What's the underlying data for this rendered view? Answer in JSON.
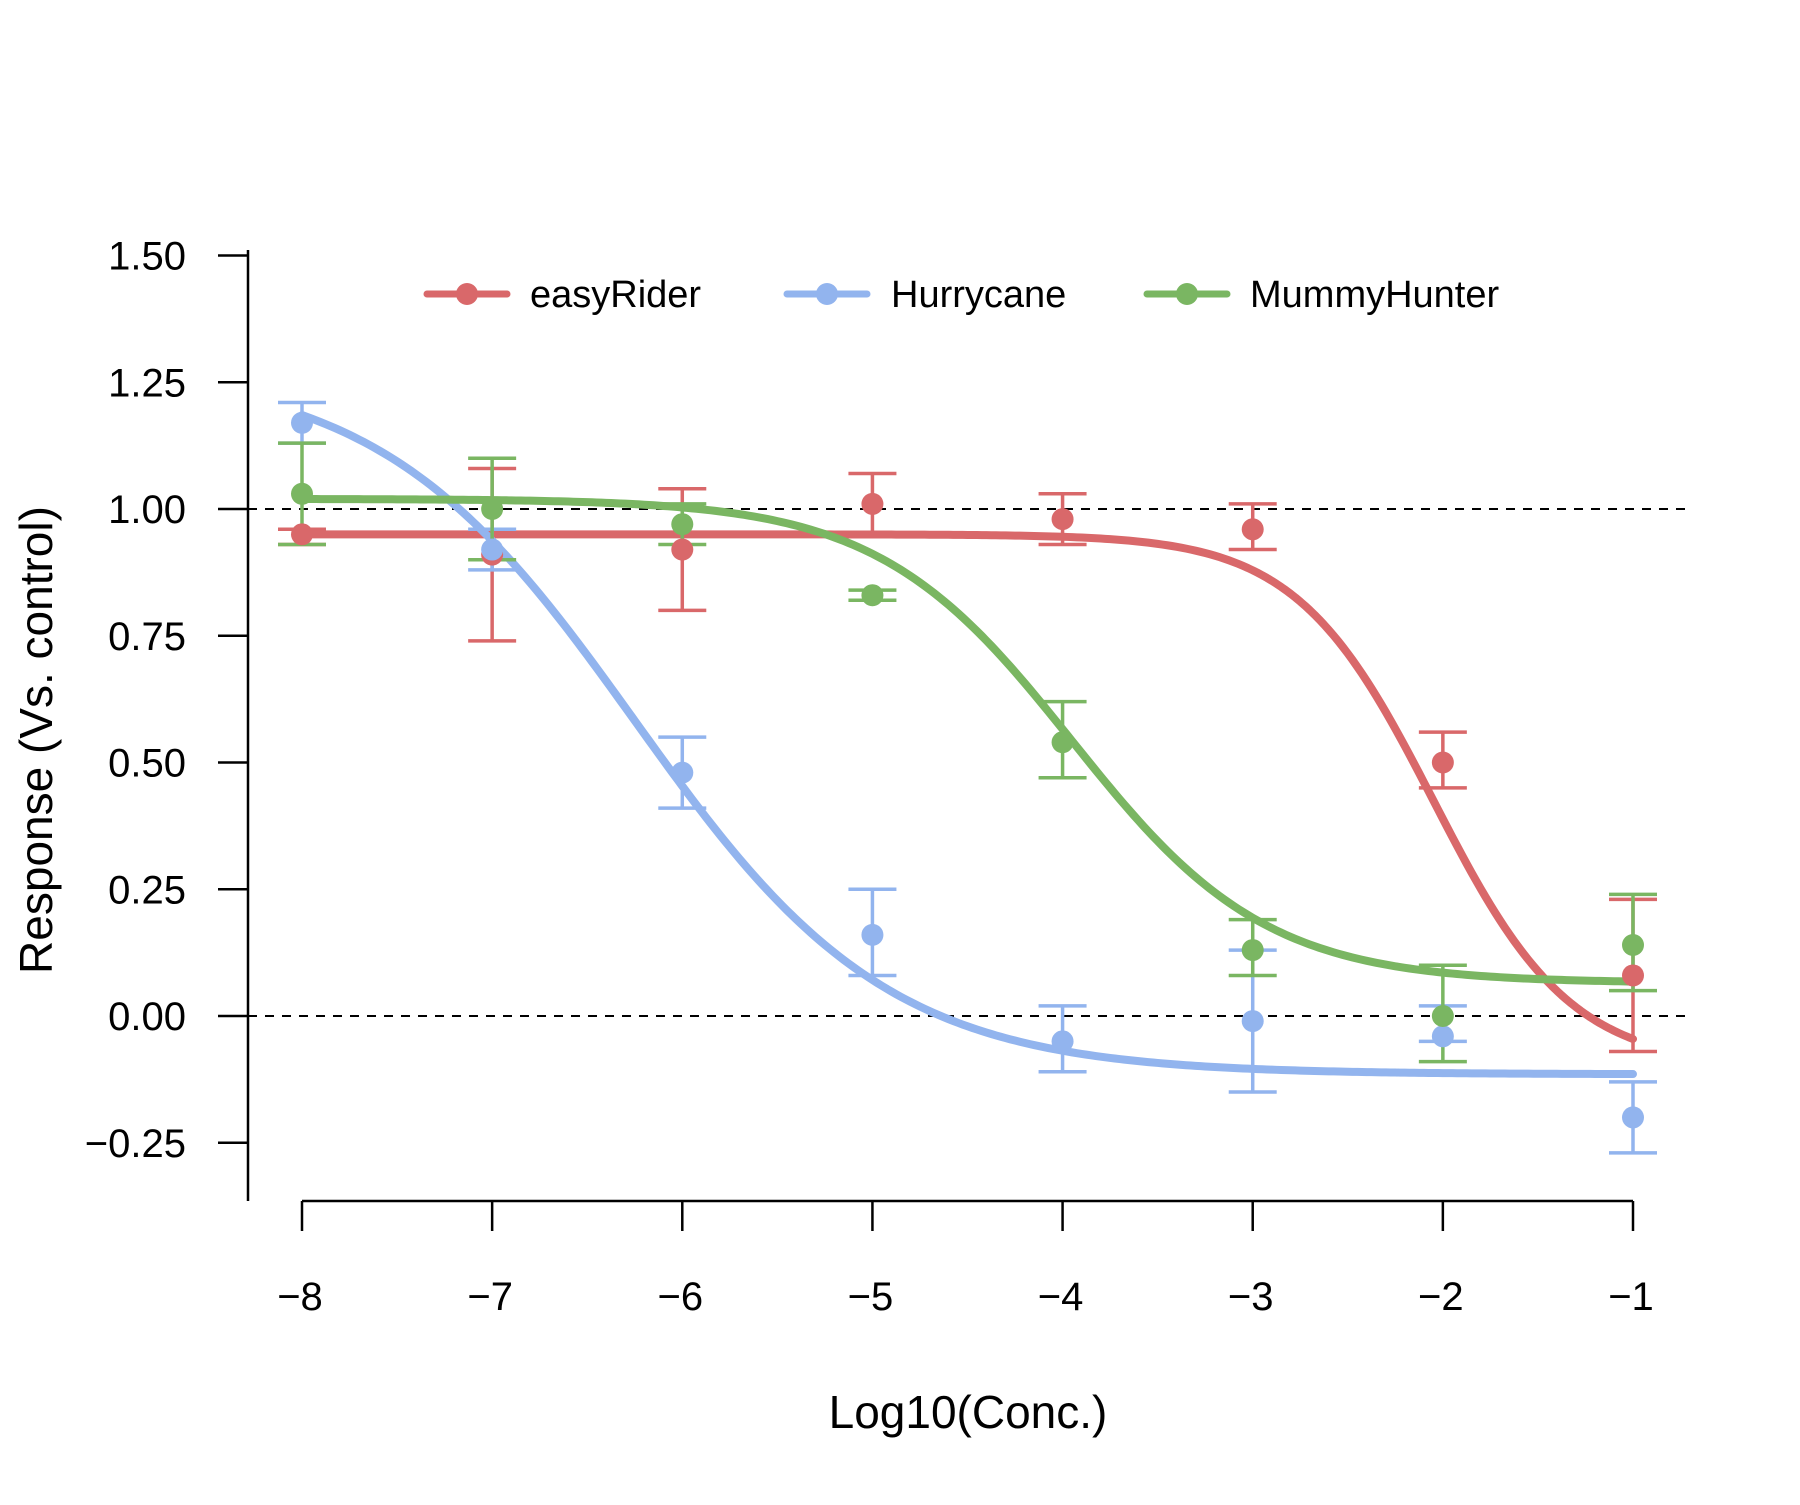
{
  "chart_data": {
    "type": "line",
    "xlabel": "Log10(Conc.)",
    "ylabel": "Response (Vs. control)",
    "xlim": [
      -8,
      -1
    ],
    "ylim": [
      -0.35,
      1.5
    ],
    "x_ticks": [
      -8,
      -7,
      -6,
      -5,
      -4,
      -3,
      -2,
      -1
    ],
    "x_tick_labels": [
      "−8",
      "−7",
      "−6",
      "−5",
      "−4",
      "−3",
      "−2",
      "−1"
    ],
    "y_ticks": [
      -0.25,
      0.0,
      0.25,
      0.5,
      0.75,
      1.0,
      1.25,
      1.5
    ],
    "y_tick_labels": [
      "−0.25",
      "0.00",
      "0.25",
      "0.50",
      "0.75",
      "1.00",
      "1.25",
      "1.50"
    ],
    "reference_lines": [
      0.0,
      1.0
    ],
    "legend_position": "top",
    "grid": false,
    "series": [
      {
        "name": "easyRider",
        "color": "#d9686a",
        "x": [
          -8,
          -7,
          -6,
          -5,
          -4,
          -3,
          -2,
          -1
        ],
        "y": [
          0.95,
          0.91,
          0.92,
          1.01,
          0.98,
          0.96,
          0.5,
          0.08
        ],
        "err_low": [
          0.93,
          0.74,
          0.8,
          0.95,
          0.93,
          0.92,
          0.45,
          -0.07
        ],
        "err_high": [
          0.96,
          1.08,
          1.04,
          1.07,
          1.03,
          1.01,
          0.56,
          0.23
        ],
        "fit": {
          "model": "4PL",
          "top": 0.95,
          "bottom": -0.1,
          "log_ec50": -2.05,
          "hill": 1.2
        }
      },
      {
        "name": "Hurrycane",
        "color": "#92b4ee",
        "x": [
          -8,
          -7,
          -6,
          -5,
          -4,
          -3,
          -2,
          -1
        ],
        "y": [
          1.17,
          0.92,
          0.48,
          0.16,
          -0.05,
          -0.01,
          -0.04,
          -0.2
        ],
        "err_low": [
          1.13,
          0.88,
          0.41,
          0.08,
          -0.11,
          -0.15,
          -0.05,
          -0.27
        ],
        "err_high": [
          1.21,
          0.96,
          0.55,
          0.25,
          0.02,
          0.13,
          0.02,
          -0.13
        ],
        "fit": {
          "model": "4PL",
          "top": 1.28,
          "bottom": -0.115,
          "log_ec50": -6.25,
          "hill": 0.65
        }
      },
      {
        "name": "MummyHunter",
        "color": "#7ab662",
        "x": [
          -8,
          -7,
          -6,
          -5,
          -4,
          -3,
          -2,
          -1
        ],
        "y": [
          1.03,
          1.0,
          0.97,
          0.83,
          0.54,
          0.13,
          0.0,
          0.14
        ],
        "err_low": [
          0.93,
          0.9,
          0.93,
          0.82,
          0.47,
          0.08,
          -0.09,
          0.05
        ],
        "err_high": [
          1.13,
          1.1,
          1.01,
          0.84,
          0.62,
          0.19,
          0.1,
          0.24
        ],
        "fit": {
          "model": "4PL",
          "top": 1.02,
          "bottom": 0.065,
          "log_ec50": -3.95,
          "hill": 0.85
        }
      }
    ]
  }
}
